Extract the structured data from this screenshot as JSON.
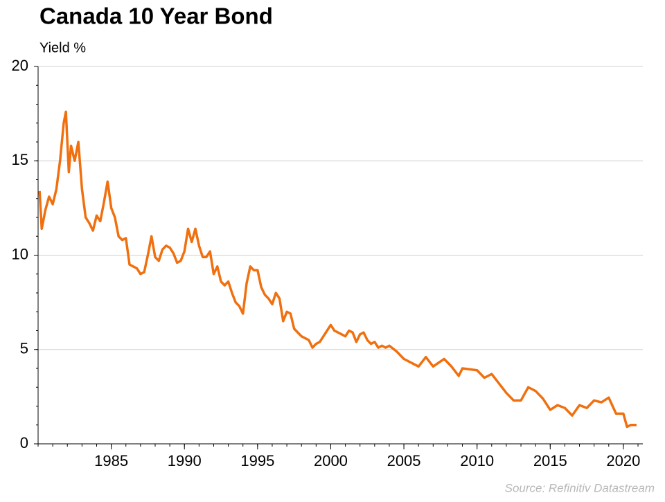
{
  "chart_data": {
    "type": "line",
    "title": "Canada 10 Year Bond",
    "y_label": "Yield %",
    "source": "Source: Refinitiv Datastream",
    "xlim": [
      1980,
      2021.33
    ],
    "xticks": [
      1985,
      1990,
      1995,
      2000,
      2005,
      2010,
      2015,
      2020
    ],
    "ylim": [
      0,
      20
    ],
    "yticks": [
      0,
      5,
      10,
      15,
      20
    ],
    "grid": true,
    "series": [
      {
        "name": "Canada 10 Year Bond",
        "color": "#f0700f",
        "x": [
          1980.1,
          1980.25,
          1980.5,
          1980.75,
          1981.0,
          1981.25,
          1981.5,
          1981.75,
          1981.9,
          1982.1,
          1982.25,
          1982.5,
          1982.75,
          1983.0,
          1983.25,
          1983.5,
          1983.75,
          1984.0,
          1984.25,
          1984.5,
          1984.75,
          1985.0,
          1985.25,
          1985.5,
          1985.75,
          1986.0,
          1986.25,
          1986.5,
          1986.75,
          1987.0,
          1987.25,
          1987.5,
          1987.75,
          1988.0,
          1988.25,
          1988.5,
          1988.75,
          1989.0,
          1989.25,
          1989.5,
          1989.75,
          1990.0,
          1990.25,
          1990.5,
          1990.75,
          1991.0,
          1991.25,
          1991.5,
          1991.75,
          1992.0,
          1992.25,
          1992.5,
          1992.75,
          1993.0,
          1993.25,
          1993.5,
          1993.75,
          1994.0,
          1994.25,
          1994.5,
          1994.75,
          1995.0,
          1995.25,
          1995.5,
          1995.75,
          1996.0,
          1996.25,
          1996.5,
          1996.75,
          1997.0,
          1997.25,
          1997.5,
          1997.75,
          1998.0,
          1998.25,
          1998.5,
          1998.75,
          1999.0,
          1999.25,
          1999.5,
          1999.75,
          2000.0,
          2000.25,
          2000.5,
          2000.75,
          2001.0,
          2001.25,
          2001.5,
          2001.75,
          2002.0,
          2002.25,
          2002.5,
          2002.75,
          2003.0,
          2003.25,
          2003.5,
          2003.75,
          2004.0,
          2004.5,
          2005.0,
          2005.5,
          2006.0,
          2006.5,
          2007.0,
          2007.75,
          2008.25,
          2008.75,
          2009.0,
          2010.0,
          2010.5,
          2011.0,
          2011.5,
          2012.0,
          2012.5,
          2013.0,
          2013.5,
          2014.0,
          2014.5,
          2015.0,
          2015.5,
          2016.0,
          2016.5,
          2017.0,
          2017.5,
          2018.0,
          2018.5,
          2019.0,
          2019.5,
          2020.0,
          2020.25,
          2020.5,
          2020.9
        ],
        "values": [
          13.4,
          11.4,
          12.4,
          13.1,
          12.7,
          13.5,
          15.0,
          17.0,
          17.6,
          14.4,
          15.8,
          15.0,
          16.0,
          13.5,
          12.0,
          11.7,
          11.3,
          12.1,
          11.8,
          12.8,
          13.9,
          12.5,
          12.0,
          11.0,
          10.8,
          10.9,
          9.5,
          9.4,
          9.3,
          9.0,
          9.1,
          10.0,
          11.0,
          9.9,
          9.7,
          10.3,
          10.5,
          10.4,
          10.1,
          9.6,
          9.7,
          10.2,
          11.4,
          10.7,
          11.4,
          10.5,
          9.9,
          9.9,
          10.2,
          9.0,
          9.4,
          8.6,
          8.4,
          8.6,
          8.0,
          7.5,
          7.3,
          6.9,
          8.5,
          9.4,
          9.2,
          9.2,
          8.3,
          7.9,
          7.7,
          7.4,
          8.0,
          7.7,
          6.5,
          7.0,
          6.9,
          6.1,
          5.9,
          5.7,
          5.6,
          5.5,
          5.1,
          5.3,
          5.4,
          5.7,
          6.0,
          6.3,
          6.0,
          5.9,
          5.8,
          5.7,
          6.0,
          5.9,
          5.4,
          5.8,
          5.9,
          5.5,
          5.3,
          5.4,
          5.1,
          5.2,
          5.1,
          5.2,
          4.9,
          4.5,
          4.3,
          4.1,
          4.6,
          4.1,
          4.5,
          4.1,
          3.6,
          4.0,
          3.9,
          3.5,
          3.7,
          3.2,
          2.7,
          2.3,
          2.3,
          3.0,
          2.8,
          2.4,
          1.8,
          2.05,
          1.9,
          1.5,
          2.05,
          1.9,
          2.3,
          2.2,
          2.45,
          1.6,
          1.6,
          0.9,
          1.0,
          1.0
        ]
      }
    ]
  }
}
